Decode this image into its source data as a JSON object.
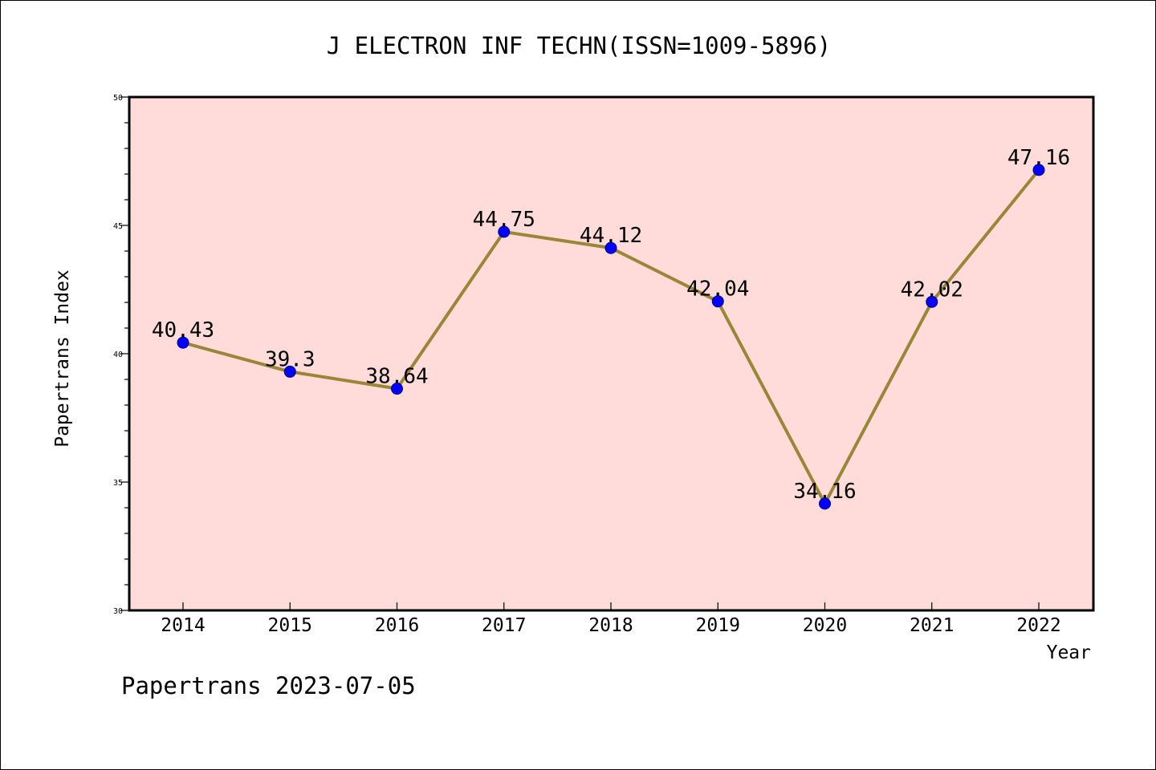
{
  "chart_data": {
    "type": "line",
    "title": "J ELECTRON INF TECHN(ISSN=1009-5896)",
    "xlabel": "Year",
    "ylabel": "Papertrans Index",
    "x": [
      "2014",
      "2015",
      "2016",
      "2017",
      "2018",
      "2019",
      "2020",
      "2021",
      "2022"
    ],
    "series": [
      {
        "values": [
          40.43,
          39.3,
          38.64,
          44.75,
          44.12,
          42.04,
          34.16,
          42.02,
          47.16
        ],
        "labels": [
          "40.43",
          "39.3",
          "38.64",
          "44.75",
          "44.12",
          "42.04",
          "34.16",
          "42.02",
          "47.16"
        ]
      }
    ],
    "ylim": [
      30,
      50
    ],
    "yticks": [
      "30",
      "35",
      "40",
      "45",
      "50"
    ],
    "grid": false,
    "colors": {
      "plot_background": "#ffdcda",
      "line": "#9b8637",
      "marker": "#0000ff",
      "marker_edge": "#000080"
    }
  },
  "footer": {
    "caption": "Papertrans 2023-07-05"
  }
}
